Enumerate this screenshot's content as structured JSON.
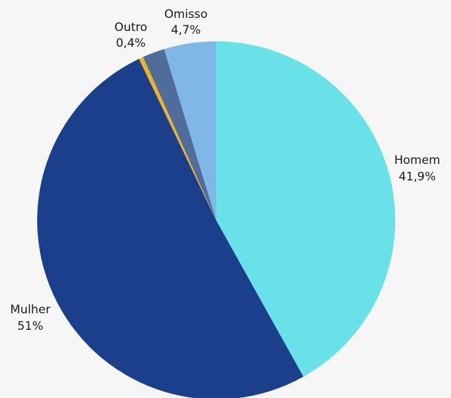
{
  "chart_data": {
    "type": "pie",
    "title": "",
    "slices": [
      {
        "name": "Homem",
        "value": 41.9,
        "display": "41,9%",
        "color": "#68e2e8"
      },
      {
        "name": "Mulher",
        "value": 51,
        "display": "51%",
        "color": "#1c3f8c"
      },
      {
        "name": "Outro",
        "value": 0.4,
        "display": "0,4%",
        "color": "#f1b523"
      },
      {
        "name": "",
        "value": 2.0,
        "display": "",
        "color": "#4f6c9a"
      },
      {
        "name": "Omisso",
        "value": 4.7,
        "display": "4,7%",
        "color": "#7fb7e6"
      }
    ]
  }
}
